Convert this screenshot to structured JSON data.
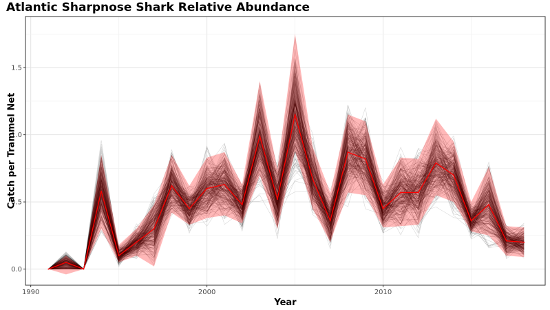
{
  "chart_data": {
    "type": "line",
    "title": "Atlantic Sharpnose Shark Relative Abundance",
    "xlabel": "Year",
    "ylabel": "Catch per Trammel Net",
    "xlim": [
      1989.7,
      2019.2
    ],
    "ylim": [
      -0.12,
      1.88
    ],
    "x_ticks": [
      1990,
      2000,
      2010
    ],
    "y_ticks": [
      0.0,
      0.5,
      1.0,
      1.5
    ],
    "y_tick_labels": [
      "0.0",
      "0.5",
      "1.0",
      "1.5"
    ],
    "grid": true,
    "legend": "none",
    "x": [
      1991,
      1992,
      1993,
      1994,
      1995,
      1996,
      1997,
      1998,
      1999,
      2000,
      2001,
      2002,
      2003,
      2004,
      2005,
      2006,
      2007,
      2008,
      2009,
      2010,
      2011,
      2012,
      2013,
      2014,
      2015,
      2016,
      2017,
      2018
    ],
    "series": [
      {
        "role": "mean",
        "color": "#ff0000",
        "values": [
          0.0,
          0.05,
          0.0,
          0.58,
          0.1,
          0.2,
          0.3,
          0.62,
          0.45,
          0.6,
          0.63,
          0.48,
          0.99,
          0.52,
          1.15,
          0.67,
          0.36,
          0.87,
          0.82,
          0.45,
          0.57,
          0.57,
          0.79,
          0.7,
          0.36,
          0.48,
          0.21,
          0.2
        ]
      },
      {
        "role": "interval-lower",
        "color": "#ff0000",
        "values": [
          0.0,
          -0.04,
          0.0,
          0.3,
          0.05,
          0.1,
          0.02,
          0.42,
          0.33,
          0.38,
          0.4,
          0.34,
          0.7,
          0.3,
          0.88,
          0.45,
          0.2,
          0.57,
          0.55,
          0.31,
          0.32,
          0.33,
          0.55,
          0.5,
          0.28,
          0.25,
          0.1,
          0.09
        ]
      },
      {
        "role": "interval-upper",
        "color": "#ff0000",
        "values": [
          0.0,
          0.1,
          0.0,
          0.85,
          0.18,
          0.3,
          0.48,
          0.85,
          0.62,
          0.83,
          0.87,
          0.63,
          1.4,
          0.74,
          1.75,
          0.91,
          0.57,
          1.15,
          1.1,
          0.63,
          0.83,
          0.82,
          1.12,
          0.95,
          0.5,
          0.76,
          0.32,
          0.31
        ]
      }
    ],
    "colors": {
      "band_fill": "#ff0000",
      "mean_line": "#ff0000",
      "sample_lines": "#000000"
    }
  }
}
